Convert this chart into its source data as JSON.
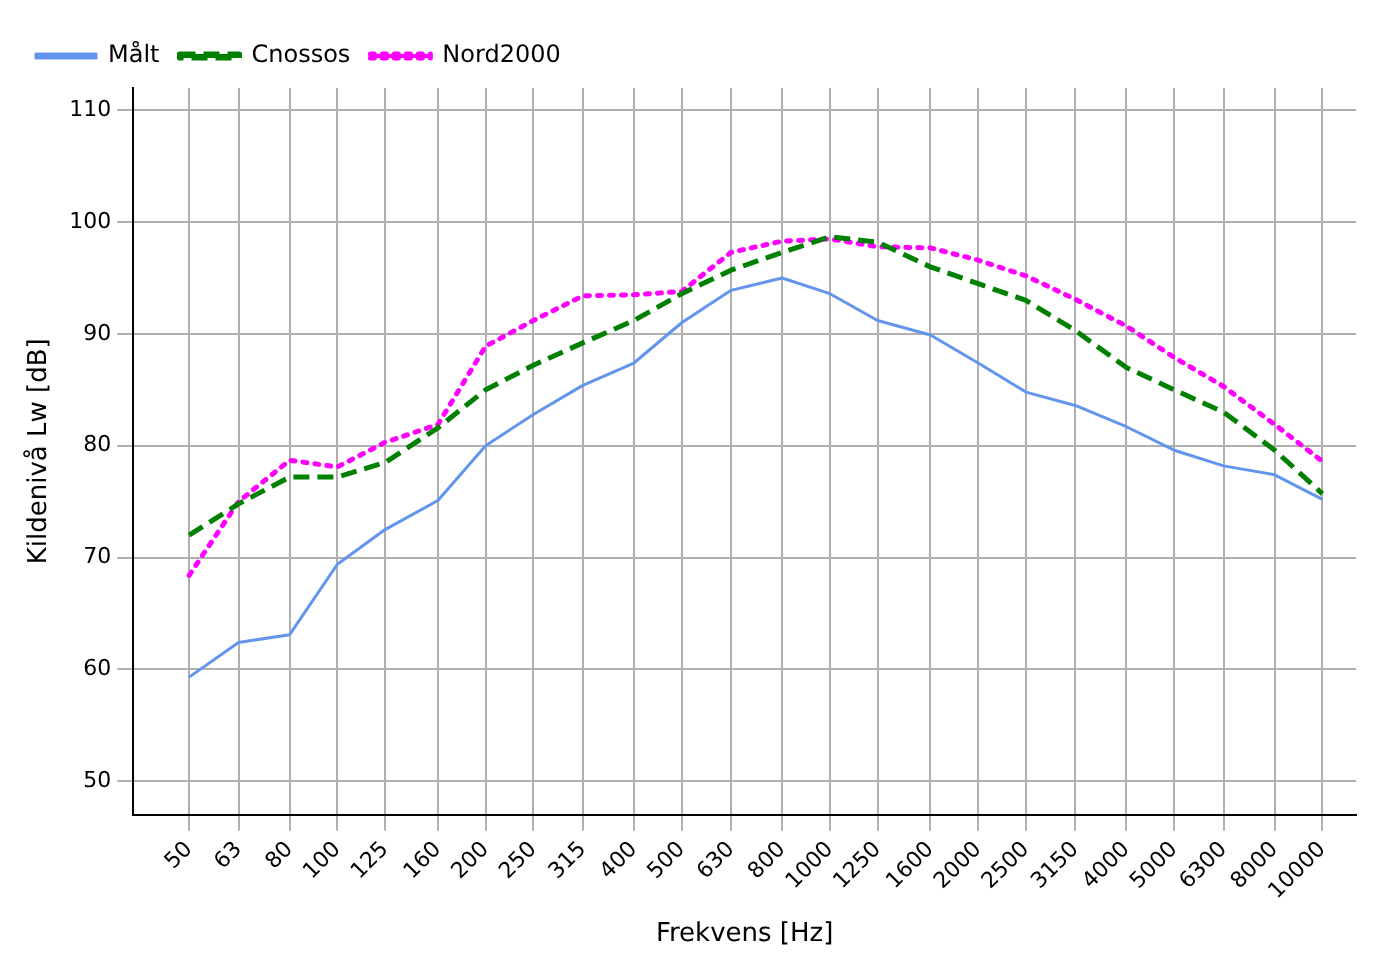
{
  "chart_data": {
    "type": "line",
    "xlabel": "Frekvens [Hz]",
    "ylabel": "Kildenivå Lw [dB]",
    "x": [
      50,
      63,
      80,
      100,
      125,
      160,
      200,
      250,
      315,
      400,
      500,
      630,
      800,
      1000,
      1250,
      1600,
      2000,
      2500,
      3150,
      4000,
      5000,
      6300,
      8000,
      10000
    ],
    "log": "x",
    "xlim": [
      38.5,
      11700
    ],
    "xticks": [
      50,
      63,
      80,
      100,
      125,
      160,
      200,
      250,
      315,
      400,
      500,
      630,
      800,
      1000,
      1250,
      1600,
      2000,
      2500,
      3150,
      4000,
      5000,
      6300,
      8000,
      10000
    ],
    "ylim": [
      47,
      112
    ],
    "yticks": [
      50,
      60,
      70,
      80,
      90,
      100,
      110
    ],
    "series": [
      {
        "name": "Målt",
        "color": "#6495ed",
        "line_style": "solid",
        "values": [
          59.3,
          62.4,
          63.1,
          69.4,
          72.5,
          75.1,
          80.0,
          82.8,
          85.4,
          87.4,
          91.0,
          93.9,
          95.0,
          93.6,
          91.2,
          89.9,
          87.4,
          84.8,
          83.6,
          81.7,
          79.6,
          78.2,
          77.4,
          75.2
        ]
      },
      {
        "name": "Cnossos",
        "color": "#008000",
        "line_style": "dashed",
        "values": [
          72.0,
          74.8,
          77.2,
          77.2,
          78.5,
          81.6,
          85.0,
          87.2,
          89.2,
          91.2,
          93.6,
          95.7,
          97.3,
          98.7,
          98.2,
          96.0,
          94.5,
          93.0,
          90.3,
          87.0,
          85.0,
          83.0,
          79.6,
          75.7
        ]
      },
      {
        "name": "Nord2000",
        "color": "#ff00ff",
        "line_style": "dotted",
        "values": [
          68.4,
          75.0,
          78.7,
          78.1,
          80.3,
          81.9,
          88.9,
          91.2,
          93.4,
          93.5,
          93.8,
          97.3,
          98.3,
          98.5,
          97.8,
          97.7,
          96.6,
          95.2,
          93.1,
          90.7,
          87.9,
          85.3,
          81.9,
          78.6
        ]
      }
    ],
    "grid": true,
    "legend": "top left",
    "marker": "none"
  }
}
